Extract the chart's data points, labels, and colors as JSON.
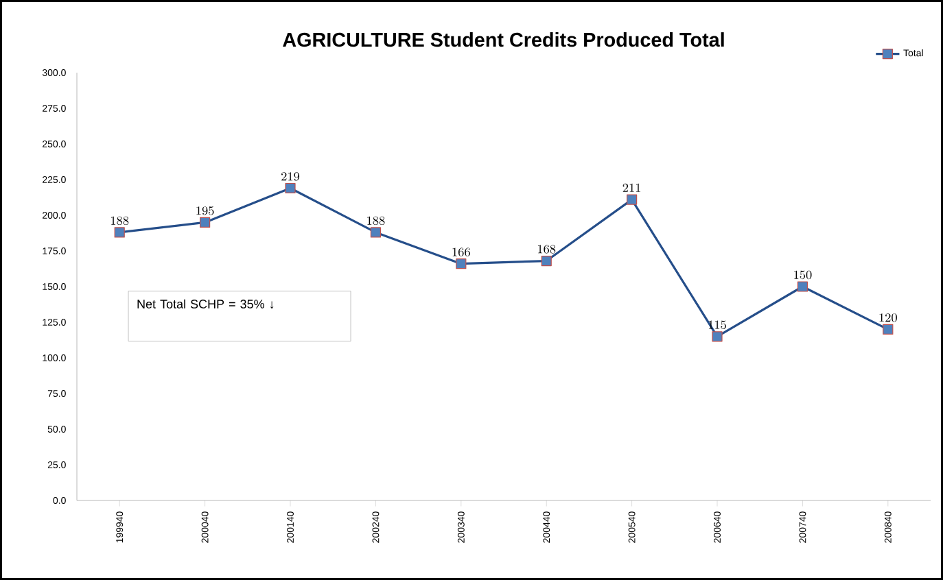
{
  "chart_data": {
    "type": "line",
    "title": "AGRICULTURE Student Credits Produced Total",
    "categories": [
      "199940",
      "200040",
      "200140",
      "200240",
      "200340",
      "200440",
      "200540",
      "200640",
      "200740",
      "200840"
    ],
    "series": [
      {
        "name": "Total",
        "color": "#254e8a",
        "values": [
          188,
          195,
          219,
          188,
          166,
          168,
          211,
          115,
          150,
          120
        ]
      }
    ],
    "ylim": [
      0,
      300
    ],
    "yticks": [
      {
        "value": 0,
        "label": "0.0"
      },
      {
        "value": 25,
        "label": "25.0"
      },
      {
        "value": 50,
        "label": "50.0"
      },
      {
        "value": 75,
        "label": "75.0"
      },
      {
        "value": 100,
        "label": "100.0"
      },
      {
        "value": 125,
        "label": "125.0"
      },
      {
        "value": 150,
        "label": "150.0"
      },
      {
        "value": 175,
        "label": "175.0"
      },
      {
        "value": 200,
        "label": "200.0"
      },
      {
        "value": 225,
        "label": "225.0"
      },
      {
        "value": 250,
        "label": "250.0"
      },
      {
        "value": 275,
        "label": "275.0"
      },
      {
        "value": 300,
        "label": "300.0"
      }
    ],
    "data_labels": true,
    "marker": "square",
    "line_style": "solid",
    "legend": "top right",
    "grid": false,
    "annotations": [
      "Net Total SCHP = 35% ↓"
    ]
  }
}
